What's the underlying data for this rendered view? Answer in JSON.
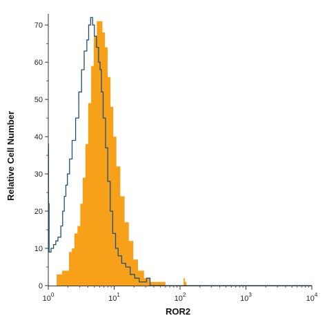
{
  "chart_data": {
    "type": "area",
    "xlabel": "ROR2",
    "ylabel": "Relative Cell Number",
    "x_scale": "log",
    "xlim": [
      1,
      10000
    ],
    "ylim": [
      0,
      73
    ],
    "grid": false,
    "x_ticks": [
      {
        "value": 1,
        "base": "10",
        "exp": "0"
      },
      {
        "value": 10,
        "base": "10",
        "exp": "1"
      },
      {
        "value": 100,
        "base": "10",
        "exp": "2"
      },
      {
        "value": 1000,
        "base": "10",
        "exp": "3"
      },
      {
        "value": 10000,
        "base": "10",
        "exp": "4"
      }
    ],
    "y_ticks": [
      0,
      10,
      20,
      30,
      40,
      50,
      60,
      70
    ],
    "colors": {
      "filled": "#f7a11a",
      "outline": "#1d4f73",
      "axis": "#333333"
    },
    "series": [
      {
        "style": "filled",
        "x": [
          1.0,
          1.34,
          1.62,
          1.85,
          2.06,
          2.28,
          2.49,
          2.77,
          3.06,
          3.33,
          3.66,
          4.03,
          4.47,
          4.9,
          5.45,
          6.0,
          6.63,
          7.25,
          7.98,
          8.79,
          9.69,
          10.8,
          12.4,
          14.4,
          16.7,
          19.5,
          23.0,
          28.4,
          35.5,
          60.0,
          105,
          113,
          118,
          125,
          300,
          1000,
          10000
        ],
        "values": [
          0,
          3,
          4,
          4,
          9,
          10,
          14,
          16,
          22,
          29,
          38,
          49,
          59,
          67,
          71,
          71,
          68,
          64,
          56,
          48,
          40,
          32,
          24,
          17,
          12,
          7,
          4,
          2,
          1,
          0,
          0,
          2,
          1,
          0,
          0,
          0,
          0
        ]
      },
      {
        "style": "outline",
        "x": [
          1.0,
          1.01,
          1.03,
          1.1,
          1.2,
          1.3,
          1.4,
          1.55,
          1.65,
          1.75,
          1.85,
          1.95,
          2.1,
          2.3,
          2.6,
          2.9,
          3.2,
          3.5,
          3.85,
          4.1,
          4.4,
          4.7,
          5.0,
          5.4,
          5.8,
          6.1,
          6.4,
          6.8,
          7.4,
          8.0,
          8.7,
          9.5,
          10.5,
          11.5,
          13.0,
          15.0,
          17.5,
          20.5,
          24.0,
          28.0,
          31.0,
          35.0,
          50.0,
          100,
          1000,
          10000
        ],
        "values": [
          38,
          22,
          9,
          10,
          11,
          12,
          13,
          16,
          20,
          24,
          27,
          30,
          34,
          39,
          45,
          52,
          58,
          63,
          66,
          70,
          72,
          70,
          67,
          64,
          60,
          58,
          52,
          45,
          37,
          28,
          20,
          14,
          10,
          8,
          6,
          5,
          3,
          2,
          1,
          1,
          2,
          0,
          0,
          0,
          0,
          0
        ]
      }
    ]
  }
}
